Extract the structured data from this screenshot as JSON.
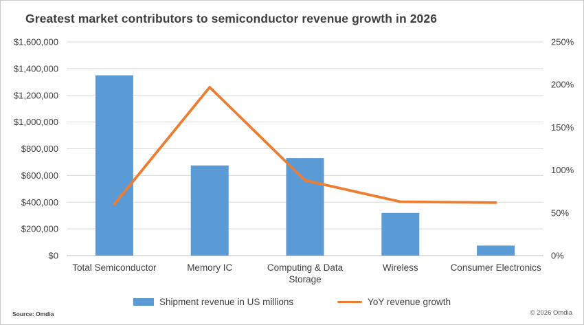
{
  "title": "Greatest market contributors to semiconductor revenue growth in 2026",
  "legend": {
    "bar_label": "Shipment revenue in US millions",
    "line_label": "YoY revenue growth"
  },
  "footer": {
    "source": "Source: Omdia",
    "copyright": "© 2026 Omdia"
  },
  "colors": {
    "bar": "#5B9BD5",
    "line": "#ED7D31",
    "gridline": "#D9D9D9",
    "axis_line": "#BFBFBF",
    "text": "#404040",
    "title": "#3F3F3F",
    "frame": "#C9C9C9"
  },
  "chart_data": {
    "type": "bar",
    "subtype": "combo-bar-line-dual-axis",
    "title": "Greatest market contributors to semiconductor revenue growth in 2026",
    "categories": [
      "Total Semiconductor",
      "Memory IC",
      "Computing & Data Storage",
      "Wireless",
      "Consumer Electronics"
    ],
    "series": [
      {
        "name": "Shipment revenue in US millions",
        "type": "bar",
        "axis": "left",
        "values": [
          1350000,
          675000,
          730000,
          320000,
          75000
        ]
      },
      {
        "name": "YoY revenue growth",
        "type": "line",
        "axis": "right",
        "unit": "%",
        "values": [
          60,
          197,
          88,
          63,
          62
        ]
      }
    ],
    "left_axis": {
      "min": 0,
      "max": 1600000,
      "step": 200000,
      "tick_labels_top_to_bottom": [
        "$1,600,000",
        "$1,400,000",
        "$1,200,000",
        "$1,000,000",
        "$800,000",
        "$600,000",
        "$400,000",
        "$200,000",
        "$0"
      ]
    },
    "right_axis": {
      "min": 0,
      "max": 250,
      "step": 50,
      "tick_labels_top_to_bottom": [
        "250%",
        "200%",
        "150%",
        "100%",
        "50%",
        "0%"
      ]
    },
    "grid": "horizontal",
    "legend_position": "bottom",
    "xlabel": "",
    "ylabel_left": "Shipment revenue in US millions",
    "ylabel_right": "YoY revenue growth"
  }
}
